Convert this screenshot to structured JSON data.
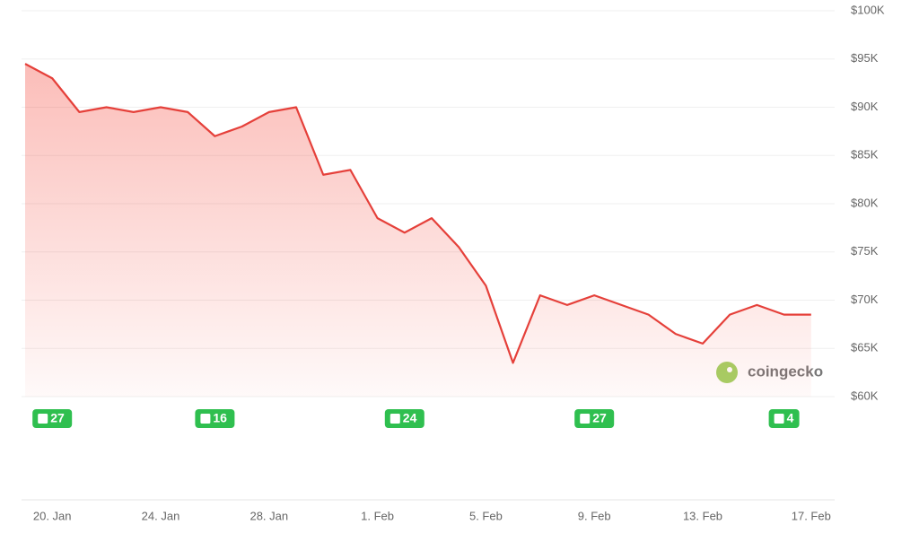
{
  "chart_data": {
    "type": "line",
    "x": [
      "19. Jan",
      "20. Jan",
      "21. Jan",
      "22. Jan",
      "23. Jan",
      "24. Jan",
      "25. Jan",
      "26. Jan",
      "27. Jan",
      "28. Jan",
      "29. Jan",
      "30. Jan",
      "31. Jan",
      "1. Feb",
      "2. Feb",
      "3. Feb",
      "4. Feb",
      "5. Feb",
      "6. Feb",
      "7. Feb",
      "8. Feb",
      "9. Feb",
      "10. Feb",
      "11. Feb",
      "12. Feb",
      "13. Feb",
      "14. Feb",
      "15. Feb",
      "16. Feb",
      "17. Feb"
    ],
    "xticks": [
      "20. Jan",
      "24. Jan",
      "28. Jan",
      "1. Feb",
      "5. Feb",
      "9. Feb",
      "13. Feb",
      "17. Feb"
    ],
    "series": [
      {
        "color": "#e5403a",
        "values": [
          94.5,
          93,
          89.5,
          90,
          89.5,
          90,
          89.5,
          87,
          88,
          89.5,
          90,
          83,
          83.5,
          78.5,
          77,
          78.5,
          75.5,
          71.5,
          63.5,
          70.5,
          69.5,
          70.5,
          69.5,
          68.5,
          66.5,
          65.5,
          68.5,
          69.5,
          68.5,
          68.5
        ]
      }
    ],
    "ylim": [
      60,
      100
    ],
    "yticks": [
      {
        "value": 60,
        "label": "$60K"
      },
      {
        "value": 65,
        "label": "$65K"
      },
      {
        "value": 70,
        "label": "$70K"
      },
      {
        "value": 75,
        "label": "$75K"
      },
      {
        "value": 80,
        "label": "$80K"
      },
      {
        "value": 85,
        "label": "$85K"
      },
      {
        "value": 90,
        "label": "$90K"
      },
      {
        "value": 95,
        "label": "$95K"
      },
      {
        "value": 100,
        "label": "$100K"
      }
    ],
    "grid": true,
    "news": [
      {
        "x": "20. Jan",
        "count": 27
      },
      {
        "x": "26. Jan",
        "count": 16
      },
      {
        "x": "2. Feb",
        "count": 24
      },
      {
        "x": "9. Feb",
        "count": 27
      },
      {
        "x": "16. Feb",
        "count": 4
      }
    ],
    "watermark": "coingecko"
  }
}
